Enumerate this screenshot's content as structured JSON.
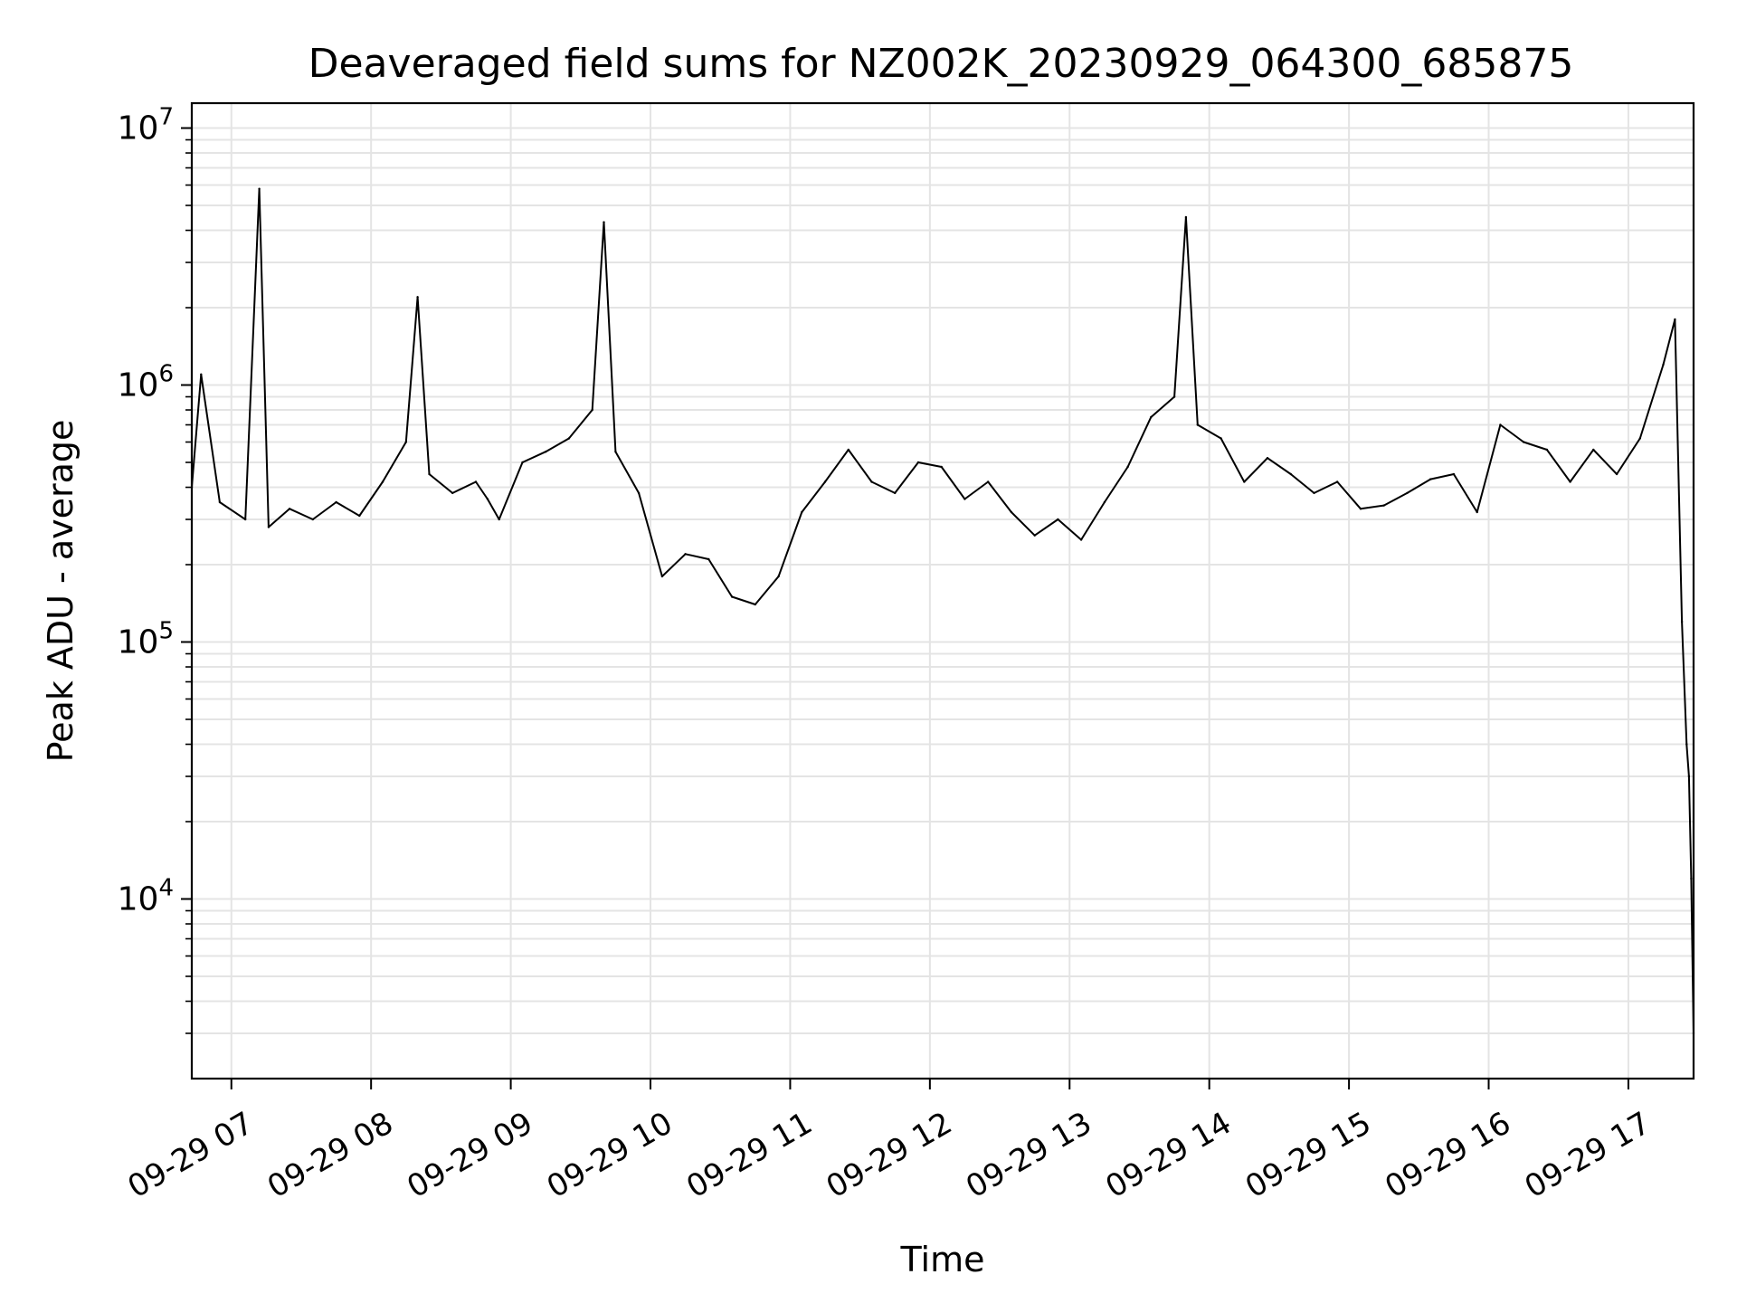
{
  "chart_data": {
    "type": "line",
    "title": "Deaveraged field sums for NZ002K_20230929_064300_685875",
    "xlabel": "Time",
    "ylabel": "Peak ADU - average",
    "yscale": "log",
    "ylim": [
      2000,
      12500000
    ],
    "xlim": [
      "2023-09-29 06:43",
      "2023-09-29 17:28"
    ],
    "grid": true,
    "x_ticks": [
      "09-29 07",
      "09-29 08",
      "09-29 09",
      "09-29 10",
      "09-29 11",
      "09-29 12",
      "09-29 13",
      "09-29 14",
      "09-29 15",
      "09-29 16",
      "09-29 17"
    ],
    "y_ticks": [
      {
        "value": 10000,
        "base": "10",
        "exp": "4"
      },
      {
        "value": 100000,
        "base": "10",
        "exp": "5"
      },
      {
        "value": 1000000,
        "base": "10",
        "exp": "6"
      },
      {
        "value": 10000000,
        "base": "10",
        "exp": "7"
      }
    ],
    "series": [
      {
        "color": "#000000",
        "x": [
          "06:43",
          "06:47",
          "06:55",
          "07:06",
          "07:12",
          "07:16",
          "07:25",
          "07:35",
          "07:45",
          "07:55",
          "08:05",
          "08:15",
          "08:20",
          "08:25",
          "08:35",
          "08:45",
          "08:50",
          "08:55",
          "09:05",
          "09:15",
          "09:25",
          "09:35",
          "09:40",
          "09:45",
          "09:55",
          "10:05",
          "10:15",
          "10:25",
          "10:35",
          "10:45",
          "10:55",
          "11:05",
          "11:15",
          "11:25",
          "11:35",
          "11:45",
          "11:55",
          "12:05",
          "12:15",
          "12:25",
          "12:35",
          "12:45",
          "12:55",
          "13:05",
          "13:15",
          "13:25",
          "13:35",
          "13:45",
          "13:50",
          "13:55",
          "14:05",
          "14:15",
          "14:25",
          "14:35",
          "14:45",
          "14:55",
          "15:05",
          "15:15",
          "15:25",
          "15:35",
          "15:45",
          "15:55",
          "16:05",
          "16:15",
          "16:25",
          "16:35",
          "16:45",
          "16:55",
          "17:05",
          "17:15",
          "17:20",
          "17:23",
          "17:25",
          "17:26",
          "17:27",
          "17:28"
        ],
        "y": [
          400000,
          1100000,
          350000,
          300000,
          5800000,
          280000,
          330000,
          300000,
          350000,
          310000,
          420000,
          600000,
          2200000,
          450000,
          380000,
          420000,
          360000,
          300000,
          500000,
          550000,
          620000,
          800000,
          4300000,
          550000,
          380000,
          180000,
          220000,
          210000,
          150000,
          140000,
          180000,
          320000,
          420000,
          560000,
          420000,
          380000,
          500000,
          480000,
          360000,
          420000,
          320000,
          260000,
          300000,
          250000,
          350000,
          480000,
          750000,
          900000,
          4500000,
          700000,
          620000,
          420000,
          520000,
          450000,
          380000,
          420000,
          330000,
          340000,
          380000,
          430000,
          450000,
          320000,
          700000,
          600000,
          560000,
          420000,
          560000,
          450000,
          620000,
          1200000,
          1800000,
          120000,
          40000,
          30000,
          12000,
          3000
        ]
      }
    ]
  }
}
